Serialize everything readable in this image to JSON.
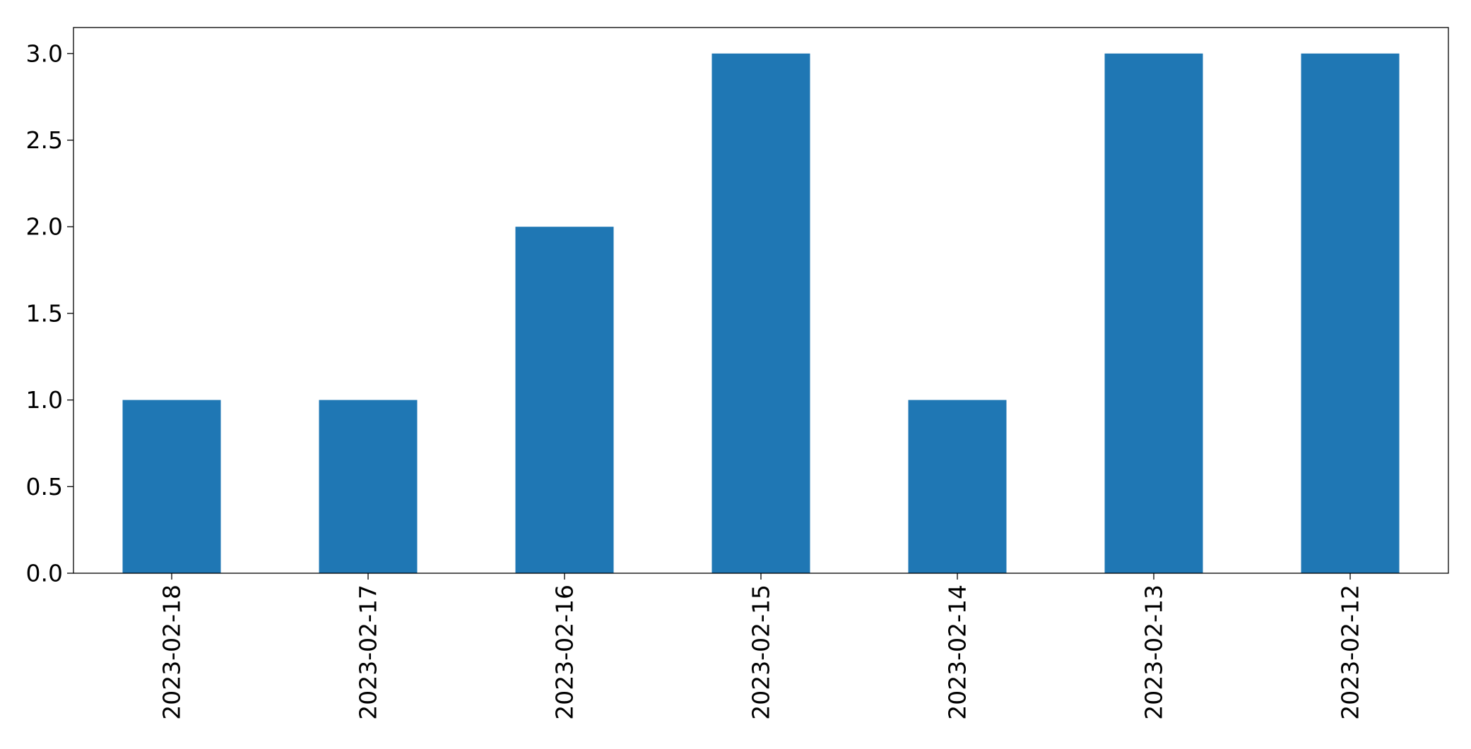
{
  "chart_data": {
    "type": "bar",
    "categories": [
      "2023-02-18",
      "2023-02-17",
      "2023-02-16",
      "2023-02-15",
      "2023-02-14",
      "2023-02-13",
      "2023-02-12"
    ],
    "values": [
      1,
      1,
      2,
      3,
      1,
      3,
      3
    ],
    "title": "",
    "xlabel": "",
    "ylabel": "",
    "ylim": [
      0,
      3.15
    ],
    "yticks": [
      "0.0",
      "0.5",
      "1.0",
      "1.5",
      "2.0",
      "2.5",
      "3.0"
    ],
    "grid": false,
    "legend": "none",
    "bar_color": "#1f77b4"
  }
}
